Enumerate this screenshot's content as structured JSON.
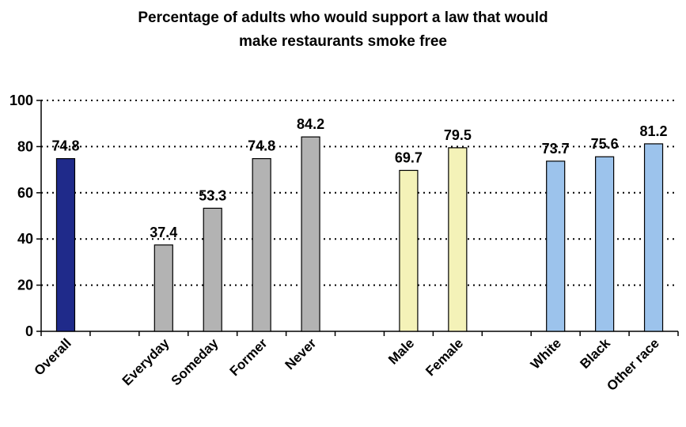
{
  "chart_data": {
    "type": "bar",
    "title_line1": "Percentage of adults who would support a law that would",
    "title_line2": "make restaurants smoke free",
    "xlabel": "",
    "ylabel": "",
    "ylim": [
      0,
      100
    ],
    "yticks": [
      0,
      20,
      40,
      60,
      80,
      100
    ],
    "grid": true,
    "categories": [
      "Overall",
      "Everyday",
      "Someday",
      "Former",
      "Never",
      "Male",
      "Female",
      "White",
      "Black",
      "Other race"
    ],
    "values": [
      74.8,
      37.4,
      53.3,
      74.8,
      84.2,
      69.7,
      79.5,
      73.7,
      75.6,
      81.2
    ],
    "slots": [
      0,
      2,
      3,
      4,
      5,
      7,
      8,
      10,
      11,
      12
    ],
    "colors": [
      "#1f2a8a",
      "#b3b3b3",
      "#b3b3b3",
      "#b3b3b3",
      "#b3b3b3",
      "#f4f2b8",
      "#f4f2b8",
      "#9cc3ec",
      "#9cc3ec",
      "#9cc3ec"
    ]
  }
}
